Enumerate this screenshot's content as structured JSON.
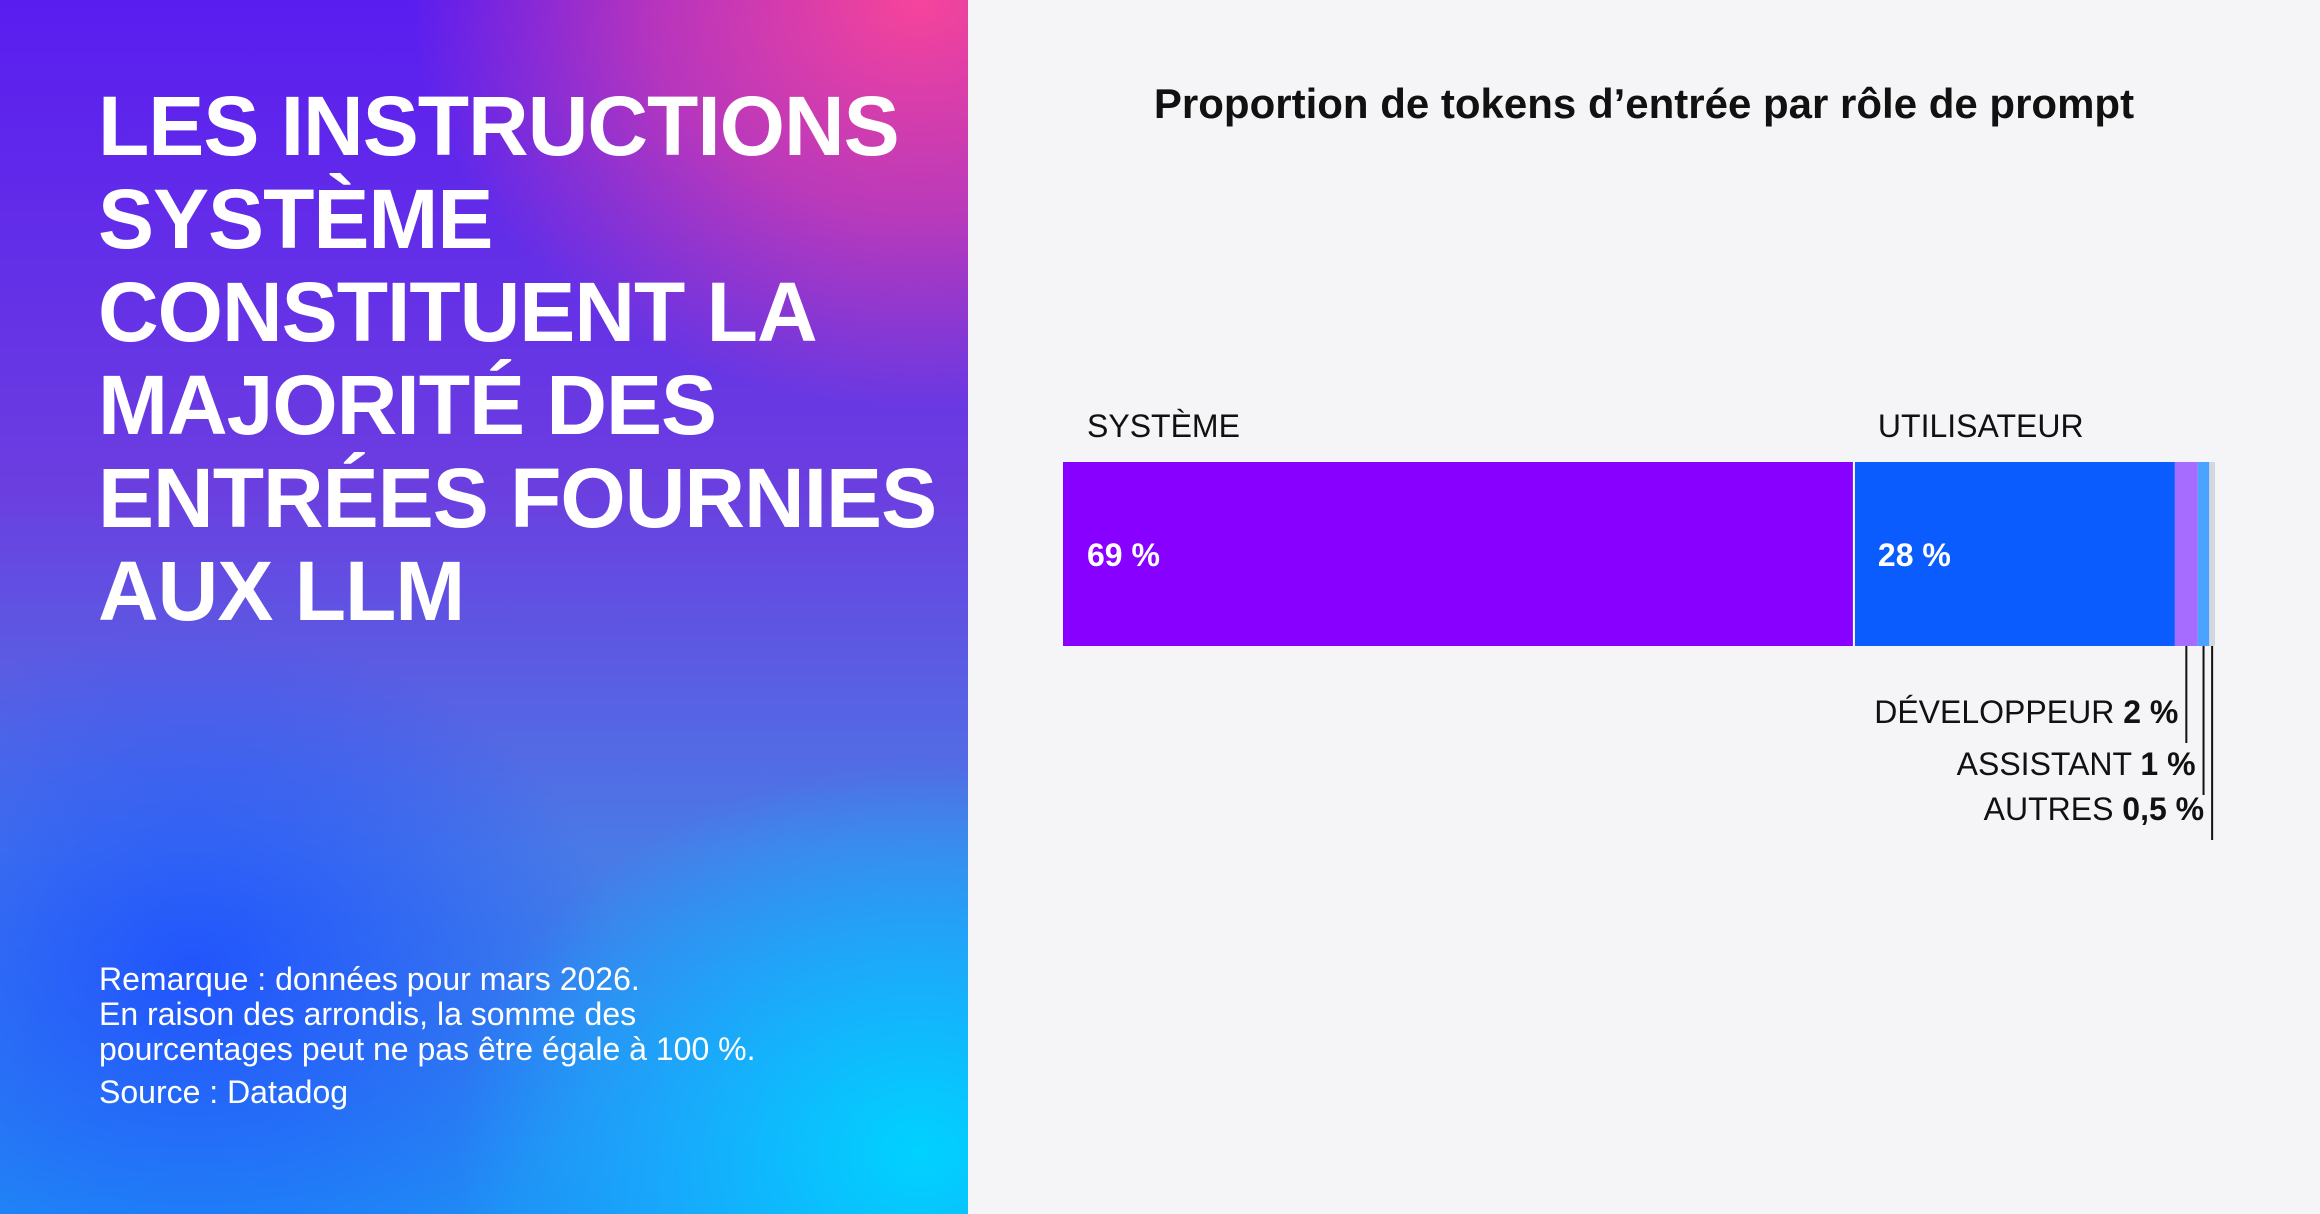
{
  "headline": [
    "LES INSTRUCTIONS",
    "SYSTÈME",
    "CONSTITUENT LA",
    "MAJORITÉ DES",
    "ENTRÉES FOURNIES",
    "AUX LLM"
  ],
  "note": {
    "lines": [
      "Remarque : données pour mars 2026.",
      "En raison des arrondis, la somme des",
      "pourcentages peut ne pas être égale à 100 %."
    ],
    "source": "Source : Datadog"
  },
  "colors": {
    "systeme": "#8800ff",
    "utilisateur": "#0a5cff",
    "developpeur": "#a56cff",
    "assistant": "#4aa3ff",
    "autres": "#d4d6e0"
  },
  "chart_data": {
    "type": "bar",
    "orientation": "horizontal-stacked",
    "title": "Proportion de tokens d’entrée par rôle de prompt",
    "unit": "%",
    "segments": [
      {
        "name": "SYSTÈME",
        "value": 69,
        "label": "69 %",
        "color": "#8800ff"
      },
      {
        "name": "UTILISATEUR",
        "value": 28,
        "label": "28 %",
        "color": "#0a5cff"
      },
      {
        "name": "DÉVELOPPEUR",
        "value": 2,
        "label": "2 %",
        "color": "#a56cff"
      },
      {
        "name": "ASSISTANT",
        "value": 1,
        "label": "1 %",
        "color": "#4aa3ff"
      },
      {
        "name": "AUTRES",
        "value": 0.5,
        "label": "0,5 %",
        "color": "#d4d6e0"
      }
    ]
  }
}
